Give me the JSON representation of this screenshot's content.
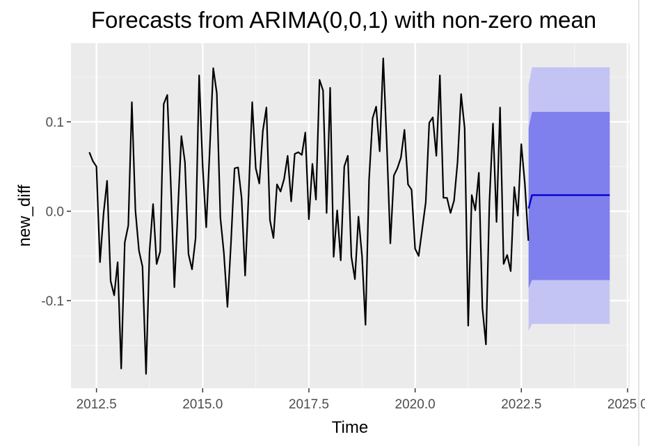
{
  "chart_data": {
    "type": "line",
    "title": "Forecasts from ARIMA(0,0,1) with non-zero mean",
    "xlabel": "Time",
    "ylabel": "new_diff",
    "xlim": [
      2011.9,
      2025.05
    ],
    "ylim": [
      -0.198,
      0.188
    ],
    "x_ticks": [
      2012.5,
      2015.0,
      2017.5,
      2020.0,
      2022.5,
      2025.0
    ],
    "x_tick_labels": [
      "2012.5",
      "2015.0",
      "2017.5",
      "2020.0",
      "2022.5",
      "2025.0"
    ],
    "y_ticks": [
      -0.1,
      0.0,
      0.1
    ],
    "y_tick_labels": [
      "-0.1",
      "0.0",
      "0.1"
    ],
    "grid": true,
    "background": "#ebebeb",
    "series": [
      {
        "kind": "observed",
        "color": "#000000",
        "start": 2012.333,
        "step": 0.08333,
        "values": [
          0.066,
          0.056,
          0.05,
          -0.057,
          -0.003,
          0.034,
          -0.078,
          -0.094,
          -0.057,
          -0.176,
          -0.035,
          -0.016,
          0.122,
          0.001,
          -0.044,
          -0.062,
          -0.182,
          -0.045,
          0.008,
          -0.059,
          -0.045,
          0.12,
          0.13,
          0.03,
          -0.085,
          0.002,
          0.084,
          0.055,
          -0.048,
          -0.065,
          -0.03,
          0.152,
          0.05,
          -0.018,
          0.07,
          0.16,
          0.132,
          -0.007,
          -0.047,
          -0.107,
          -0.035,
          0.048,
          0.049,
          0.015,
          -0.072,
          0.02,
          0.122,
          0.048,
          0.031,
          0.09,
          0.116,
          -0.01,
          -0.03,
          0.03,
          0.022,
          0.036,
          0.062,
          0.011,
          0.064,
          0.066,
          0.063,
          0.088,
          -0.009,
          0.053,
          0.013,
          0.147,
          0.135,
          -0.002,
          0.138,
          -0.051,
          0.001,
          -0.055,
          0.05,
          0.062,
          -0.051,
          -0.076,
          -0.006,
          -0.05,
          -0.127,
          0.035,
          0.104,
          0.117,
          0.067,
          0.171,
          0.075,
          -0.036,
          0.04,
          0.048,
          0.06,
          0.091,
          0.03,
          0.024,
          -0.042,
          -0.05,
          -0.02,
          0.01,
          0.099,
          0.105,
          0.062,
          0.152,
          0.015,
          0.015,
          -0.002,
          0.012,
          0.055,
          0.131,
          0.093,
          -0.128,
          0.018,
          0.001,
          0.043,
          -0.108,
          -0.149,
          0.01,
          0.098,
          -0.012,
          0.116,
          -0.059,
          -0.049,
          -0.067,
          0.027,
          -0.005,
          0.075,
          0.031,
          -0.033
        ]
      },
      {
        "kind": "forecast",
        "color": "#0000cc",
        "x": [
          2022.67,
          2022.75,
          2022.83,
          2024.58
        ],
        "values": [
          0.003,
          0.018,
          0.018,
          0.018
        ],
        "lower_80": [
          -0.086,
          -0.077,
          -0.077,
          -0.077
        ],
        "upper_80": [
          0.093,
          0.111,
          0.111,
          0.111
        ],
        "lower_95": [
          -0.134,
          -0.126,
          -0.126,
          -0.126
        ],
        "upper_95": [
          0.141,
          0.161,
          0.161,
          0.161
        ],
        "band_80_color": "#7f7fee",
        "band_95_color": "#c3c3f4"
      }
    ]
  }
}
